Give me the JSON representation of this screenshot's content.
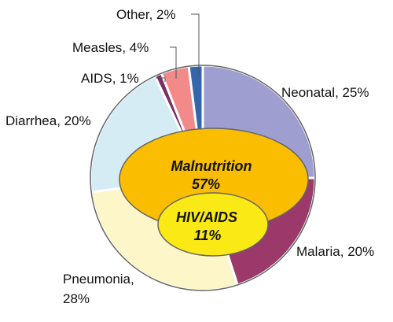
{
  "chart_data": {
    "type": "pie",
    "title": "",
    "slices": [
      {
        "label": "Neonatal",
        "value_text": "25%",
        "value": 25,
        "color": "#9e9ed0"
      },
      {
        "label": "Malaria",
        "value_text": "20%",
        "value": 20,
        "color": "#9b3a6a"
      },
      {
        "label": "Pneumonia",
        "value_text": "28%",
        "value": 28,
        "color": "#fdf6c8"
      },
      {
        "label": "Diarrhea",
        "value_text": "20%",
        "value": 20,
        "color": "#d5ecf4"
      },
      {
        "label": "AIDS",
        "value_text": "1%",
        "value": 1,
        "color": "#7a2e63"
      },
      {
        "label": "Measles",
        "value_text": "4%",
        "value": 4,
        "color": "#f28a8a"
      },
      {
        "label": "Other",
        "value_text": "2%",
        "value": 2,
        "color": "#3366aa"
      }
    ],
    "overlays": [
      {
        "label": "Malnutrition",
        "value_text": "57%",
        "value": 57,
        "color": "#fbbd00"
      },
      {
        "label": "HIV/AIDS",
        "value_text": "11%",
        "value": 11,
        "color": "#fbe916"
      }
    ],
    "slice_border_color": "#ffffff",
    "outline_color": "#666666"
  }
}
